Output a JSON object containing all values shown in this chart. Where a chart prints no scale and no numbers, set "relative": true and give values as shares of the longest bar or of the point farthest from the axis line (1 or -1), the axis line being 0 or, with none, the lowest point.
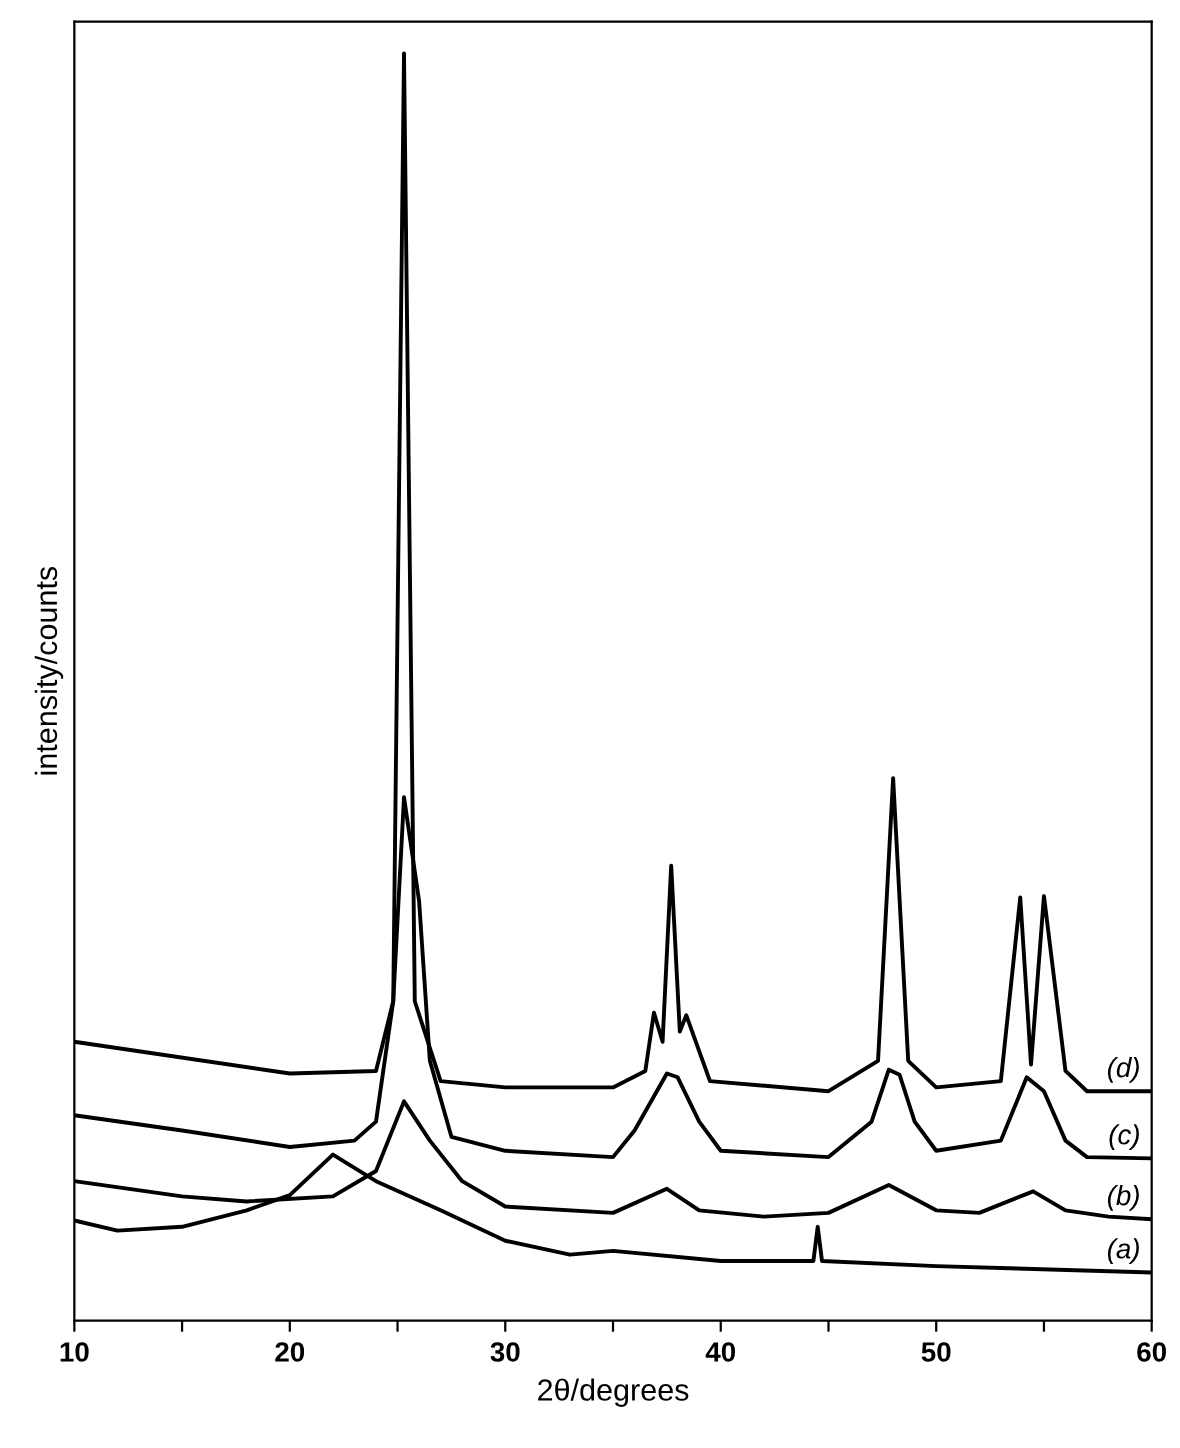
{
  "chart_data": {
    "type": "line",
    "relative": true,
    "xlabel": "2θ/degrees",
    "ylabel": "intensity/counts",
    "xlim": [
      10,
      60
    ],
    "xticks": [
      10,
      {
        "value": 15,
        "label": null
      },
      20,
      {
        "value": 25,
        "label": null
      },
      30,
      {
        "value": 35,
        "label": null
      },
      40,
      {
        "value": 45,
        "label": null
      },
      50,
      {
        "value": 55,
        "label": null
      },
      60
    ],
    "tick_labels": "x",
    "grid": false,
    "legend": false,
    "marker": "none",
    "line_style": "solid",
    "series": [
      {
        "name": "(a)",
        "color": "#000000",
        "x": [
          10,
          12,
          15,
          18,
          20,
          22,
          24,
          27,
          30,
          33,
          35,
          40,
          44.3,
          44.5,
          44.7,
          50,
          60
        ],
        "values": [
          0.079,
          0.071,
          0.074,
          0.087,
          0.099,
          0.131,
          0.11,
          0.087,
          0.063,
          0.052,
          0.055,
          0.047,
          0.047,
          0.074,
          0.047,
          0.043,
          0.038
        ]
      },
      {
        "name": "(b)",
        "color": "#000000",
        "x": [
          10,
          15,
          18,
          22,
          24,
          25.3,
          26.5,
          28,
          30,
          35,
          37.5,
          39,
          42,
          45,
          47.8,
          50,
          52,
          54.5,
          56,
          58,
          60
        ],
        "values": [
          0.11,
          0.098,
          0.094,
          0.098,
          0.118,
          0.173,
          0.142,
          0.11,
          0.09,
          0.085,
          0.104,
          0.087,
          0.082,
          0.085,
          0.107,
          0.087,
          0.085,
          0.102,
          0.087,
          0.082,
          0.08
        ]
      },
      {
        "name": "(c)",
        "color": "#000000",
        "x": [
          10,
          15,
          20,
          23,
          24,
          24.8,
          25.3,
          26,
          26.5,
          27.5,
          30,
          35,
          36,
          37.5,
          38,
          39,
          40,
          45,
          47,
          47.8,
          48.3,
          49,
          50,
          53,
          54.2,
          55,
          56,
          57,
          60
        ],
        "values": [
          0.162,
          0.15,
          0.137,
          0.142,
          0.157,
          0.252,
          0.413,
          0.331,
          0.205,
          0.145,
          0.134,
          0.129,
          0.15,
          0.195,
          0.192,
          0.157,
          0.134,
          0.129,
          0.157,
          0.198,
          0.194,
          0.157,
          0.134,
          0.142,
          0.192,
          0.181,
          0.142,
          0.129,
          0.128
        ]
      },
      {
        "name": "(d)",
        "color": "#000000",
        "x": [
          10,
          20,
          24,
          24.8,
          25.3,
          25.8,
          27,
          30,
          35,
          36.5,
          36.9,
          37.3,
          37.7,
          38.1,
          38.4,
          39.5,
          45,
          47.3,
          48.0,
          48.7,
          50,
          53,
          53.9,
          54.4,
          55.0,
          56,
          57,
          60
        ],
        "values": [
          0.22,
          0.195,
          0.197,
          0.252,
          1.0,
          0.252,
          0.189,
          0.184,
          0.184,
          0.197,
          0.243,
          0.22,
          0.359,
          0.228,
          0.241,
          0.189,
          0.181,
          0.205,
          0.428,
          0.205,
          0.184,
          0.189,
          0.334,
          0.202,
          0.335,
          0.197,
          0.181,
          0.181
        ]
      }
    ]
  }
}
